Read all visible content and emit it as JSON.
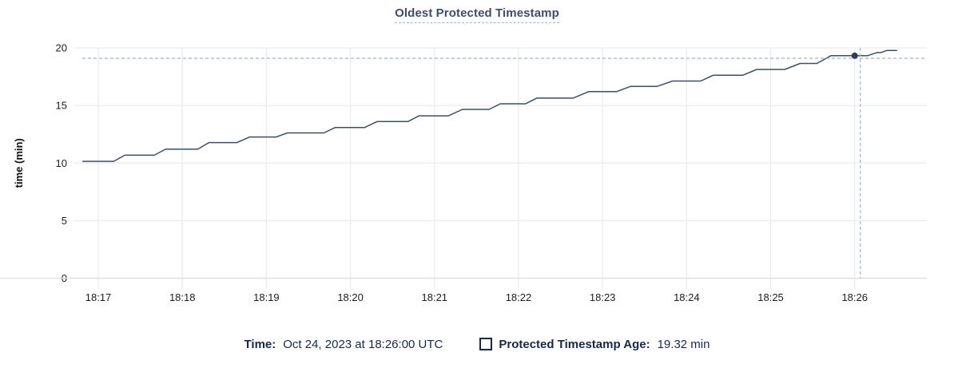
{
  "title": "Oldest Protected Timestamp",
  "colors": {
    "line": "#3e4d68",
    "dot": "#2f3f5a",
    "grid": "#ececec",
    "axis_line": "#dddddd",
    "crosshair": "#9fb2c6",
    "title_text": "#3d4d6b",
    "legend_text": "#16294c",
    "tick_text": "#1c1c1c"
  },
  "legend": {
    "time_label": "Time:",
    "time_value": "Oct 24, 2023 at 18:26:00 UTC",
    "series_label": "Protected Timestamp Age:",
    "series_value": "19.32 min"
  },
  "chart_data": {
    "type": "line",
    "title": "Oldest Protected Timestamp",
    "xlabel": "",
    "ylabel": "time (min)",
    "ylim": [
      0,
      20
    ],
    "y_ticks": [
      0,
      5,
      10,
      15,
      20
    ],
    "x_ticks": [
      "18:17",
      "18:18",
      "18:19",
      "18:20",
      "18:21",
      "18:22",
      "18:23",
      "18:24",
      "18:25",
      "18:26"
    ],
    "x_tick_offsets_sec": [
      0,
      60,
      120,
      180,
      240,
      300,
      360,
      420,
      480,
      540
    ],
    "x_domain_sec": [
      -17.7,
      591.5
    ],
    "grid": true,
    "legend_position": "bottom",
    "series": [
      {
        "name": "Protected Timestamp Age",
        "unit": "min",
        "points_t_sec_value_min": [
          [
            -11,
            10.15
          ],
          [
            11,
            10.15
          ],
          [
            19,
            10.68
          ],
          [
            40,
            10.68
          ],
          [
            48,
            11.2
          ],
          [
            71,
            11.2
          ],
          [
            79,
            11.78
          ],
          [
            99,
            11.78
          ],
          [
            108,
            12.26
          ],
          [
            127,
            12.26
          ],
          [
            135,
            12.62
          ],
          [
            161,
            12.62
          ],
          [
            169,
            13.08
          ],
          [
            190,
            13.08
          ],
          [
            199,
            13.6
          ],
          [
            221,
            13.6
          ],
          [
            229,
            14.1
          ],
          [
            250,
            14.1
          ],
          [
            260,
            14.66
          ],
          [
            279,
            14.66
          ],
          [
            287,
            15.15
          ],
          [
            305,
            15.15
          ],
          [
            313,
            15.64
          ],
          [
            339,
            15.64
          ],
          [
            350,
            16.2
          ],
          [
            370,
            16.2
          ],
          [
            380,
            16.66
          ],
          [
            399,
            16.66
          ],
          [
            410,
            17.12
          ],
          [
            430,
            17.12
          ],
          [
            439,
            17.62
          ],
          [
            460,
            17.62
          ],
          [
            470,
            18.13
          ],
          [
            490,
            18.13
          ],
          [
            501,
            18.65
          ],
          [
            513,
            18.65
          ],
          [
            523,
            19.32
          ],
          [
            549,
            19.32
          ],
          [
            556,
            19.6
          ],
          [
            559,
            19.6
          ],
          [
            563,
            19.78
          ],
          [
            570,
            19.78
          ]
        ]
      }
    ],
    "hover": {
      "time": "18:26:00",
      "value_min": 19.32,
      "point_t_sec": 540,
      "crosshair_t_sec": 544,
      "crosshair_value_min": 19.1
    }
  }
}
